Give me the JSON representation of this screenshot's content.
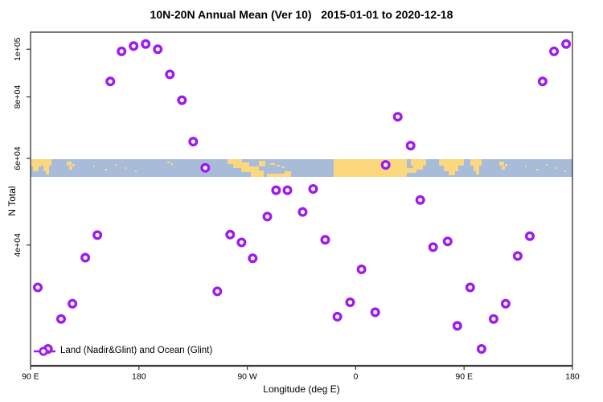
{
  "chart": {
    "colors": {
      "point": "#A01AEA",
      "ocean": "#A8BBD9",
      "land": "#FBD77E",
      "frame": "#333333",
      "axis_line": "#4A4A4A",
      "text": "#000000"
    }
  },
  "chart_data": {
    "type": "scatter",
    "title": "10N-20N Annual Mean (Ver 10)   2015-01-01 to 2020-12-18",
    "x_axis": {
      "label": "Longitude (deg E)",
      "note": "longitude axis wraps eastward starting at 90E: 90E > 180 > 90W > 0 > 90E > 180 (450 deg total); u = unwrapped degrees east",
      "range_u": [
        90,
        540
      ],
      "ticks": [
        {
          "u": 90,
          "label": "90 E"
        },
        {
          "u": 180,
          "label": "180"
        },
        {
          "u": 270,
          "label": "90 W"
        },
        {
          "u": 360,
          "label": "0"
        },
        {
          "u": 450,
          "label": "90 E"
        },
        {
          "u": 540,
          "label": "180"
        }
      ]
    },
    "y_axis": {
      "label": "N Total",
      "scale": "log",
      "range": [
        23000,
        108000
      ],
      "ticks": [
        {
          "value": 100000,
          "label": "1e+05"
        },
        {
          "value": 80000,
          "label": "8e+04"
        },
        {
          "value": 60000,
          "label": "6e+04"
        },
        {
          "value": 40000,
          "label": "4e+04"
        }
      ]
    },
    "legend": {
      "label": "Land (Nadir&Glint) and Ocean (Glint)",
      "position": "bottom-left",
      "marker": "purple open circle on line segment"
    },
    "map_band": {
      "description": "horizontal world-coastline strip (10N-20N latitude belt) drawn across plot at N Total near 58000",
      "lat_range": "10N-20N"
    },
    "points": [
      {
        "u": 96.0,
        "lon": 96.0,
        "n": 32800
      },
      {
        "u": 104.5,
        "lon": 104.5,
        "n": 24600
      },
      {
        "u": 115.4,
        "lon": 115.4,
        "n": 28300
      },
      {
        "u": 124.8,
        "lon": 124.8,
        "n": 30400
      },
      {
        "u": 135.5,
        "lon": 135.5,
        "n": 37700
      },
      {
        "u": 145.5,
        "lon": 145.5,
        "n": 41900
      },
      {
        "u": 156.2,
        "lon": 156.2,
        "n": 86000
      },
      {
        "u": 165.6,
        "lon": 165.6,
        "n": 99000
      },
      {
        "u": 175.6,
        "lon": 175.6,
        "n": 101500
      },
      {
        "u": 185.6,
        "lon": -174.4,
        "n": 102500
      },
      {
        "u": 195.6,
        "lon": -164.4,
        "n": 100000
      },
      {
        "u": 205.7,
        "lon": -154.3,
        "n": 88900
      },
      {
        "u": 215.7,
        "lon": -144.3,
        "n": 78800
      },
      {
        "u": 225.1,
        "lon": -134.9,
        "n": 64900
      },
      {
        "u": 235.1,
        "lon": -124.9,
        "n": 57400
      },
      {
        "u": 245.1,
        "lon": -114.9,
        "n": 32200
      },
      {
        "u": 255.8,
        "lon": -104.2,
        "n": 42000
      },
      {
        "u": 265.2,
        "lon": -94.8,
        "n": 40500
      },
      {
        "u": 274.5,
        "lon": -85.5,
        "n": 37600
      },
      {
        "u": 286.6,
        "lon": -73.4,
        "n": 45700
      },
      {
        "u": 293.9,
        "lon": -66.1,
        "n": 51700
      },
      {
        "u": 303.3,
        "lon": -56.7,
        "n": 51700
      },
      {
        "u": 316.0,
        "lon": -44.0,
        "n": 46700
      },
      {
        "u": 324.7,
        "lon": -35.3,
        "n": 52000
      },
      {
        "u": 334.7,
        "lon": -25.3,
        "n": 41000
      },
      {
        "u": 344.8,
        "lon": -15.2,
        "n": 28600
      },
      {
        "u": 355.4,
        "lon": -4.6,
        "n": 30600
      },
      {
        "u": 364.8,
        "lon": 4.8,
        "n": 35700
      },
      {
        "u": 376.2,
        "lon": 16.2,
        "n": 29200
      },
      {
        "u": 384.9,
        "lon": 24.9,
        "n": 58200
      },
      {
        "u": 394.9,
        "lon": 34.9,
        "n": 72900
      },
      {
        "u": 405.6,
        "lon": 45.6,
        "n": 63700
      },
      {
        "u": 413.6,
        "lon": 53.6,
        "n": 49400
      },
      {
        "u": 424.3,
        "lon": 64.3,
        "n": 39600
      },
      {
        "u": 436.4,
        "lon": 76.4,
        "n": 40700
      },
      {
        "u": 444.4,
        "lon": 84.4,
        "n": 27400
      },
      {
        "u": 455.1,
        "lon": 95.1,
        "n": 32800
      },
      {
        "u": 464.5,
        "lon": 104.5,
        "n": 24600
      },
      {
        "u": 474.5,
        "lon": 114.5,
        "n": 28300
      },
      {
        "u": 484.5,
        "lon": 124.5,
        "n": 30400
      },
      {
        "u": 494.5,
        "lon": 134.5,
        "n": 38000
      },
      {
        "u": 504.6,
        "lon": 144.6,
        "n": 41700
      },
      {
        "u": 515.2,
        "lon": 155.2,
        "n": 86000
      },
      {
        "u": 524.7,
        "lon": 164.7,
        "n": 99000
      },
      {
        "u": 534.7,
        "lon": 174.7,
        "n": 102500
      }
    ]
  }
}
